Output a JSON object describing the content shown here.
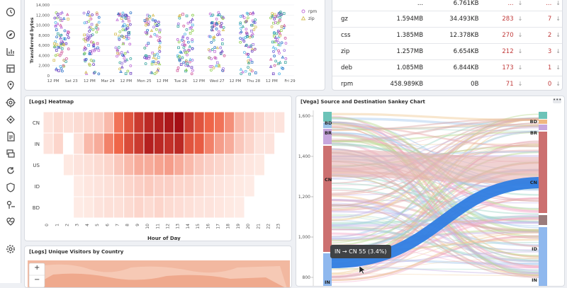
{
  "nav": {
    "icons": [
      "clock-icon",
      "compass-icon",
      "bar-chart-icon",
      "dashboard-icon",
      "map-pin-icon",
      "target-icon",
      "app-icon",
      "document-icon",
      "stack-icon",
      "refresh-icon",
      "shield-icon",
      "health-icon",
      "heart-monitor-icon",
      "gear-icon"
    ]
  },
  "scatter_panel": {
    "ylabel": "Transferred bytes",
    "legend": [
      "rpm",
      "zip"
    ],
    "chart_data": {
      "type": "scatter",
      "xlabel": "",
      "ylabel": "Transferred bytes",
      "ylim": [
        0,
        14000
      ],
      "yticks": [
        "0",
        "2,000",
        "4,000",
        "6,000",
        "8,000",
        "10,000",
        "12,000",
        "14,000"
      ],
      "xticks": [
        "12 PM",
        "Sat 23",
        "12 PM",
        "Mar 24",
        "12 PM",
        "Mon 25",
        "12 PM",
        "Tue 26",
        "12 PM",
        "Wed 27",
        "12 PM",
        "Thu 28",
        "12 PM",
        "Fri 29"
      ],
      "series": [
        {
          "name": "rpm",
          "color": "#c06bd8"
        },
        {
          "name": "zip",
          "color": "#d6bf57"
        }
      ],
      "clusters_center_pct": [
        4,
        16.5,
        29.5,
        41.5,
        55,
        68,
        81,
        93.5
      ]
    }
  },
  "table_panel": {
    "rows": [
      {
        "type": "",
        "bytes": "...",
        "max": "6.761KB",
        "count": "...",
        "unique": "..."
      },
      {
        "type": "gz",
        "bytes": "1.594MB",
        "max": "34.493KB",
        "count": "283",
        "unique": "7"
      },
      {
        "type": "css",
        "bytes": "1.385MB",
        "max": "12.378KB",
        "count": "270",
        "unique": "2"
      },
      {
        "type": "zip",
        "bytes": "1.257MB",
        "max": "6.654KB",
        "count": "212",
        "unique": "3"
      },
      {
        "type": "deb",
        "bytes": "1.085MB",
        "max": "6.844KB",
        "count": "173",
        "unique": "1"
      },
      {
        "type": "rpm",
        "bytes": "458.989KB",
        "max": "0B",
        "count": "71",
        "unique": "0"
      }
    ],
    "arrow": "↓"
  },
  "heatmap_panel": {
    "title": "[Logs] Heatmap",
    "xlabel": "Hour of Day",
    "chart_data": {
      "type": "heatmap",
      "rows": [
        "CN",
        "IN",
        "US",
        "ID",
        "BD"
      ],
      "cols": [
        "0",
        "1",
        "2",
        "3",
        "4",
        "5",
        "6",
        "7",
        "8",
        "9",
        "10",
        "11",
        "12",
        "13",
        "14",
        "15",
        "16",
        "17",
        "18",
        "19",
        "20",
        "21",
        "22",
        "23"
      ],
      "values": [
        [
          0.05,
          0.08,
          0.06,
          0.08,
          0.1,
          0.12,
          0.2,
          0.45,
          0.6,
          0.75,
          0.85,
          0.9,
          0.95,
          1.0,
          0.75,
          0.6,
          0.5,
          0.45,
          0.35,
          0.2,
          0.15,
          0.1,
          0.05,
          0.05
        ],
        [
          0.05,
          0.1,
          0.0,
          0.06,
          0.2,
          0.25,
          0.4,
          0.5,
          0.65,
          0.75,
          0.9,
          0.85,
          0.8,
          0.85,
          0.6,
          0.55,
          0.4,
          0.3,
          0.25,
          0.15,
          0.1,
          0.05,
          0.05,
          0.0
        ],
        [
          0.0,
          0.0,
          0.03,
          0.05,
          0.06,
          0.08,
          0.1,
          0.15,
          0.2,
          0.25,
          0.25,
          0.28,
          0.3,
          0.25,
          0.2,
          0.15,
          0.12,
          0.1,
          0.08,
          0.05,
          0.04,
          0.03,
          0.0,
          0.0
        ],
        [
          0.0,
          0.0,
          0.0,
          0.02,
          0.04,
          0.05,
          0.06,
          0.08,
          0.1,
          0.12,
          0.14,
          0.12,
          0.12,
          0.1,
          0.1,
          0.08,
          0.06,
          0.05,
          0.04,
          0.03,
          0.02,
          0.0,
          0.0,
          0.0
        ],
        [
          0.0,
          0.0,
          0.0,
          0.02,
          0.03,
          0.05,
          0.06,
          0.06,
          0.08,
          0.1,
          0.08,
          0.1,
          0.08,
          0.07,
          0.06,
          0.05,
          0.05,
          0.04,
          0.03,
          0.02,
          0.0,
          0.0,
          0.0,
          0.0
        ]
      ],
      "color_low": "#fff1ec",
      "color_high": "#a50f15"
    }
  },
  "sankey_panel": {
    "title": "[Vega] Source and Destination Sankey Chart",
    "menu": "•••",
    "yticks": [
      "1,600",
      "1,400",
      "1,200",
      "1,000",
      "800"
    ],
    "left_nodes": [
      "BD",
      "BR",
      "CN",
      "IN"
    ],
    "right_nodes": [
      "BD",
      "BR",
      "CN",
      "ID",
      "IN"
    ],
    "highlight_color": "#2f7de1",
    "tooltip": "IN → CN 55 (3.4%)"
  },
  "map_panel": {
    "title": "[Logs] Unique Visitors by Country",
    "zoom_in": "+",
    "zoom_out": "−"
  }
}
